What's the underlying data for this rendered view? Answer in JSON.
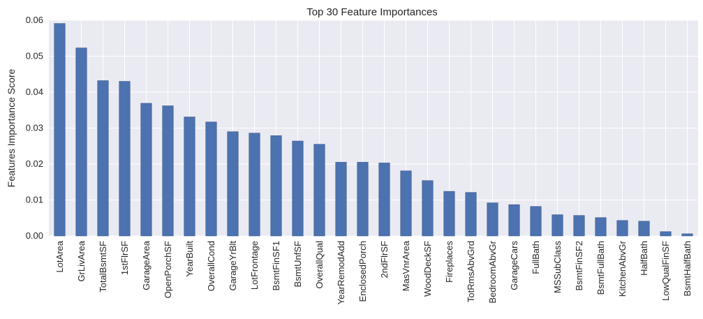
{
  "chart_data": {
    "type": "bar",
    "title": "Top 30 Feature Importances",
    "xlabel": "",
    "ylabel": "Features Importance Score",
    "ylim": [
      0,
      0.06
    ],
    "yticks": [
      "0.00",
      "0.01",
      "0.02",
      "0.03",
      "0.04",
      "0.05",
      "0.06"
    ],
    "grid": true,
    "bar_color": "#4c72b0",
    "background_color": "#eaeaf2",
    "categories": [
      "LotArea",
      "GrLivArea",
      "TotalBsmtSF",
      "1stFlrSF",
      "GarageArea",
      "OpenPorchSF",
      "YearBuilt",
      "OverallCond",
      "GarageYrBlt",
      "LotFrontage",
      "BsmtFinSF1",
      "BsmtUnfSF",
      "OverallQual",
      "YearRemodAdd",
      "EnclosedPorch",
      "2ndFlrSF",
      "MasVnrArea",
      "WoodDeckSF",
      "Fireplaces",
      "TotRmsAbvGrd",
      "BedroomAbvGr",
      "GarageCars",
      "FullBath",
      "MSSubClass",
      "BsmtFinSF2",
      "BsmtFullBath",
      "KitchenAbvGr",
      "HalfBath",
      "LowQualFinSF",
      "BsmtHalfBath"
    ],
    "values": [
      0.0591,
      0.0523,
      0.0432,
      0.043,
      0.0369,
      0.0362,
      0.0331,
      0.0317,
      0.029,
      0.0286,
      0.0279,
      0.0264,
      0.0255,
      0.0205,
      0.0205,
      0.0203,
      0.0181,
      0.0154,
      0.0124,
      0.0121,
      0.0092,
      0.0087,
      0.0082,
      0.0059,
      0.0057,
      0.0051,
      0.0043,
      0.0041,
      0.0012,
      0.0006
    ]
  }
}
